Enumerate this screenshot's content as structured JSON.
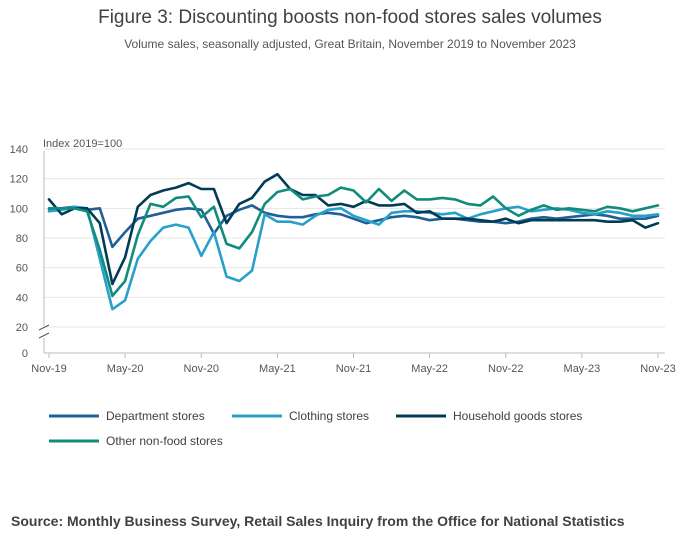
{
  "title": "Figure 3: Discounting boosts non-food stores sales volumes",
  "subtitle": "Volume sales, seasonally adjusted, Great Britain, November 2019 to November 2023",
  "source": "Source: Monthly Business Survey, Retail Sales Inquiry from the Office for National Statistics",
  "chart_data": {
    "type": "line",
    "ylabel": "Index 2019=100",
    "ylim": [
      0,
      140
    ],
    "yticks": [
      0,
      20,
      40,
      60,
      80,
      100,
      120,
      140
    ],
    "y_axis_break": true,
    "grid": true,
    "legend_position": "bottom",
    "x": [
      "Nov-19",
      "Dec-19",
      "Jan-20",
      "Feb-20",
      "Mar-20",
      "Apr-20",
      "May-20",
      "Jun-20",
      "Jul-20",
      "Aug-20",
      "Sep-20",
      "Oct-20",
      "Nov-20",
      "Dec-20",
      "Jan-21",
      "Feb-21",
      "Mar-21",
      "Apr-21",
      "May-21",
      "Jun-21",
      "Jul-21",
      "Aug-21",
      "Sep-21",
      "Oct-21",
      "Nov-21",
      "Dec-21",
      "Jan-22",
      "Feb-22",
      "Mar-22",
      "Apr-22",
      "May-22",
      "Jun-22",
      "Jul-22",
      "Aug-22",
      "Sep-22",
      "Oct-22",
      "Nov-22",
      "Dec-22",
      "Jan-23",
      "Feb-23",
      "Mar-23",
      "Apr-23",
      "May-23",
      "Jun-23",
      "Jul-23",
      "Aug-23",
      "Sep-23",
      "Oct-23",
      "Nov-23"
    ],
    "xtick_labels": [
      "Nov-19",
      "May-20",
      "Nov-20",
      "May-21",
      "Nov-21",
      "May-22",
      "Nov-22",
      "May-23",
      "Nov-23"
    ],
    "series": [
      {
        "name": "Department stores",
        "color": "#206095",
        "values": [
          99,
          100,
          101,
          99,
          100,
          74,
          84,
          93,
          95,
          97,
          99,
          100,
          99,
          83,
          95,
          99,
          102,
          97,
          95,
          94,
          94,
          96,
          97,
          96,
          93,
          90,
          92,
          94,
          95,
          94,
          92,
          93,
          93,
          92,
          91,
          91,
          90,
          91,
          93,
          94,
          93,
          94,
          95,
          96,
          95,
          93,
          93,
          93,
          95
        ]
      },
      {
        "name": "Clothing stores",
        "color": "#27a0cc",
        "values": [
          98,
          99,
          101,
          100,
          66,
          32,
          38,
          66,
          78,
          87,
          89,
          87,
          68,
          84,
          54,
          51,
          58,
          96,
          91,
          91,
          89,
          95,
          99,
          100,
          95,
          92,
          89,
          97,
          98,
          98,
          97,
          96,
          97,
          93,
          96,
          98,
          100,
          101,
          98,
          99,
          100,
          99,
          97,
          96,
          98,
          97,
          95,
          95,
          96
        ]
      },
      {
        "name": "Household goods stores",
        "color": "#003c57",
        "values": [
          106,
          96,
          100,
          100,
          90,
          49,
          67,
          101,
          109,
          112,
          114,
          117,
          113,
          113,
          90,
          103,
          107,
          118,
          123,
          113,
          109,
          109,
          102,
          103,
          101,
          105,
          102,
          102,
          103,
          97,
          98,
          93,
          93,
          93,
          92,
          91,
          93,
          90,
          92,
          92,
          92,
          92,
          92,
          92,
          91,
          91,
          92,
          87,
          90
        ]
      },
      {
        "name": "Other non-food stores",
        "color": "#118c7b",
        "values": [
          100,
          100,
          100,
          98,
          72,
          41,
          51,
          82,
          103,
          101,
          107,
          108,
          94,
          101,
          76,
          73,
          84,
          103,
          111,
          113,
          106,
          108,
          109,
          114,
          112,
          104,
          113,
          105,
          112,
          106,
          106,
          107,
          106,
          103,
          102,
          108,
          100,
          95,
          99,
          102,
          99,
          100,
          99,
          98,
          101,
          100,
          98,
          100,
          102
        ]
      }
    ]
  }
}
